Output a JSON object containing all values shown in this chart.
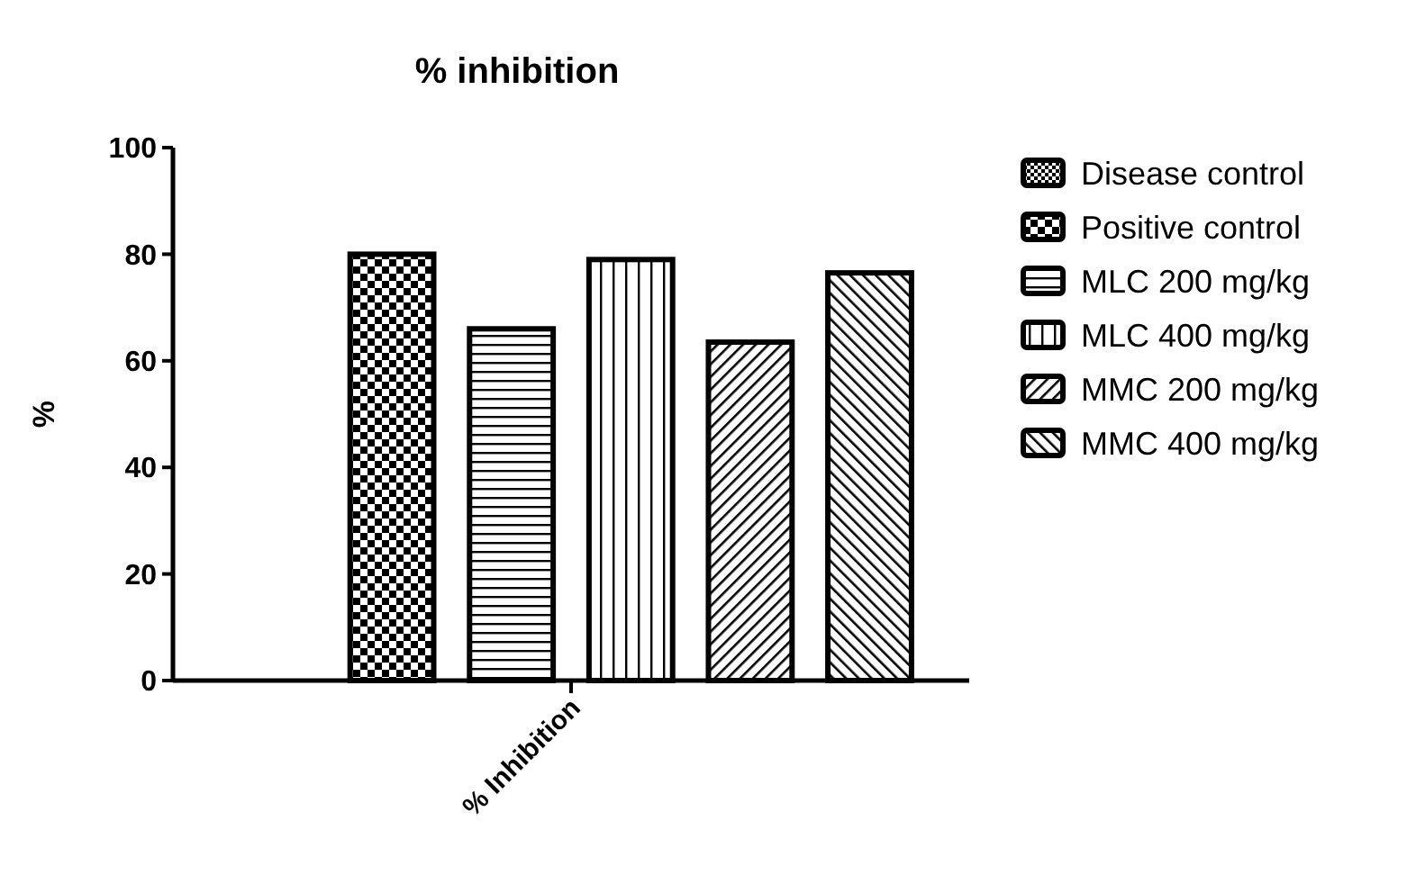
{
  "chart_data": {
    "type": "bar",
    "title": "% inhibition",
    "ylabel": "%",
    "categories": [
      "% Inhibition"
    ],
    "series": [
      {
        "name": "Disease control",
        "color": "#000000",
        "values": [
          0
        ]
      },
      {
        "name": "Positive control",
        "color": "#000000",
        "values": [
          80
        ]
      },
      {
        "name": "MLC 200 mg/kg",
        "color": "#000000",
        "values": [
          66
        ]
      },
      {
        "name": "MLC 400 mg/kg",
        "color": "#000000",
        "values": [
          79
        ]
      },
      {
        "name": "MMC 200 mg/kg",
        "color": "#000000",
        "values": [
          63.5
        ]
      },
      {
        "name": "MMC 400 mg/kg",
        "color": "#000000",
        "values": [
          76.5
        ]
      }
    ],
    "ylim": [
      0,
      100
    ],
    "yticks": [
      0,
      20,
      40,
      60,
      80,
      100
    ],
    "grid": false,
    "legend": "right"
  }
}
